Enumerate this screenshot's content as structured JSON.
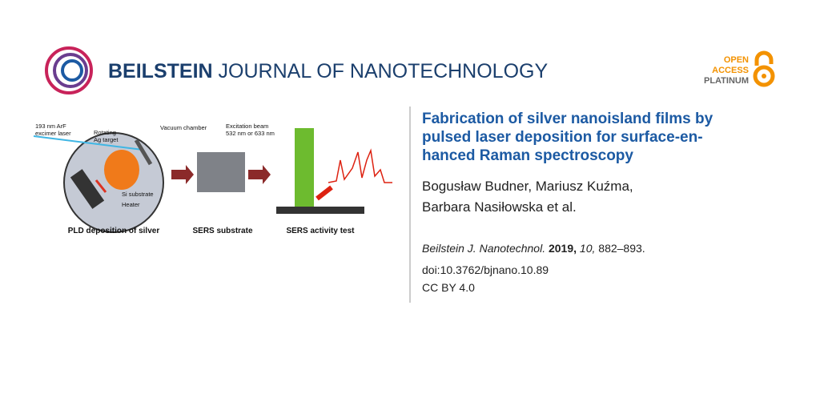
{
  "header": {
    "journal_bold": "BEILSTEIN",
    "journal_rest": "JOURNAL OF NANOTECHNOLOGY",
    "badge": [
      "OPEN",
      "ACCESS",
      "PLATINUM"
    ]
  },
  "figure": {
    "laser": [
      "193 nm ArF",
      "excimer laser"
    ],
    "target": [
      "Rotating",
      "Ag target"
    ],
    "chamber": "Vacuum chamber",
    "beam": [
      "Excitation beam",
      "532 nm or 633 nm"
    ],
    "substrate": "Si substrate",
    "heater": "Heater",
    "captions": [
      "PLD deposition of silver",
      "SERS substrate",
      "SERS activity test"
    ]
  },
  "article": {
    "title_lines": [
      "Fabrication of silver nanoisland films by",
      "pulsed laser deposition for surface-en-",
      "hanced Raman spectroscopy"
    ],
    "author_lines": [
      "Bogusław Budner, Mariusz Kuźma,",
      "Barbara Nasiłowska et al."
    ],
    "journal": "Beilstein J. Nanotechnol.",
    "year": "2019,",
    "volume": "10,",
    "pages": "882–893.",
    "doi": "doi:10.3762/bjnano.10.89",
    "license": "CC BY 4.0"
  }
}
